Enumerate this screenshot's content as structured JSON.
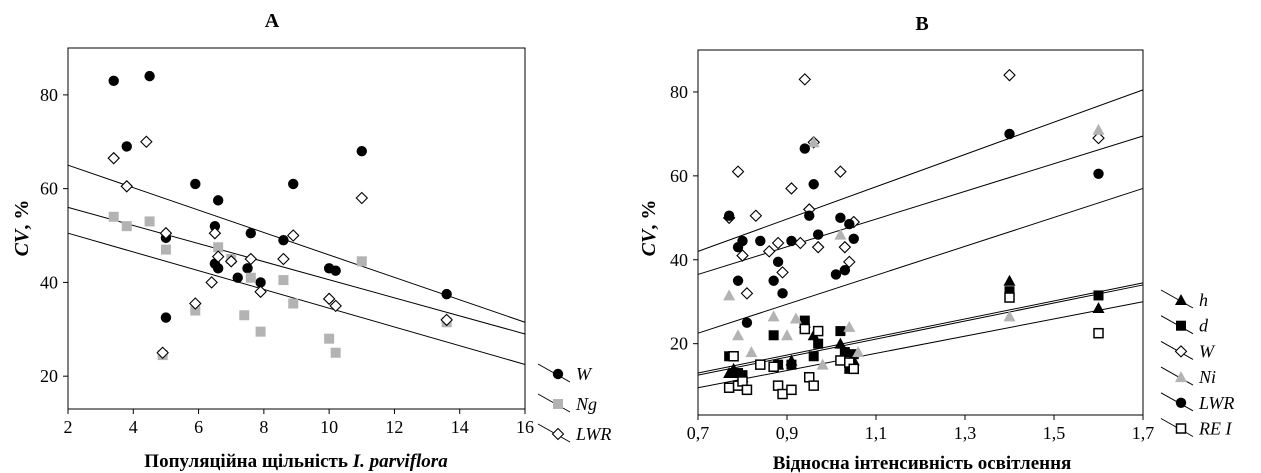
{
  "chart_data": [
    {
      "type": "scatter",
      "panel": "A",
      "title": "A",
      "xlabel": "Популяційна щільність I. parviflora",
      "xlabel_parts": [
        "Популяційна щільність ",
        "I. parviflora"
      ],
      "ylabel": "CV, %",
      "ylabel_parts": [
        "CV",
        ", %"
      ],
      "xlim": [
        2,
        16
      ],
      "ylim": [
        13,
        90
      ],
      "xticks": [
        2,
        4,
        6,
        8,
        10,
        12,
        14,
        16
      ],
      "yticks": [
        20,
        40,
        60,
        80
      ],
      "xtick_labels": [
        "2",
        "4",
        "6",
        "8",
        "10",
        "12",
        "14",
        "16"
      ],
      "ytick_labels": [
        "20",
        "40",
        "60",
        "80"
      ],
      "series": [
        {
          "name": "W",
          "marker": "circle-filled",
          "color": "#000000",
          "points": [
            [
              3.4,
              83
            ],
            [
              4.5,
              84
            ],
            [
              3.8,
              69
            ],
            [
              5.0,
              49.5
            ],
            [
              5.0,
              32.5
            ],
            [
              5.9,
              61
            ],
            [
              6.6,
              57.5
            ],
            [
              6.5,
              52
            ],
            [
              6.5,
              44
            ],
            [
              6.6,
              43
            ],
            [
              7.2,
              41
            ],
            [
              7.5,
              43
            ],
            [
              7.6,
              50.5
            ],
            [
              7.9,
              40
            ],
            [
              8.6,
              49
            ],
            [
              8.9,
              61
            ],
            [
              10.0,
              43
            ],
            [
              10.2,
              42.5
            ],
            [
              11.0,
              68
            ],
            [
              13.6,
              37.5
            ]
          ]
        },
        {
          "name": "Ng",
          "marker": "square-filled",
          "color": "#b3b3b3",
          "points": [
            [
              3.4,
              54
            ],
            [
              3.8,
              52
            ],
            [
              4.5,
              53
            ],
            [
              5.0,
              47
            ],
            [
              5.9,
              34
            ],
            [
              6.6,
              47.5
            ],
            [
              7.0,
              45
            ],
            [
              7.4,
              33
            ],
            [
              7.6,
              41
            ],
            [
              7.9,
              29.5
            ],
            [
              8.6,
              40.5
            ],
            [
              8.9,
              35.5
            ],
            [
              10.0,
              28
            ],
            [
              10.2,
              25
            ],
            [
              11.0,
              44.5
            ],
            [
              13.6,
              31.5
            ],
            [
              4.9,
              24.5
            ]
          ]
        },
        {
          "name": "LWR",
          "marker": "diamond-open",
          "color": "#000000",
          "points": [
            [
              3.4,
              66.5
            ],
            [
              3.8,
              60.5
            ],
            [
              4.4,
              70
            ],
            [
              5.0,
              50.5
            ],
            [
              4.9,
              25
            ],
            [
              5.9,
              35.5
            ],
            [
              6.5,
              50.5
            ],
            [
              6.4,
              40
            ],
            [
              6.6,
              45.5
            ],
            [
              7.0,
              44.5
            ],
            [
              7.6,
              45
            ],
            [
              7.9,
              38
            ],
            [
              8.6,
              45
            ],
            [
              8.9,
              50
            ],
            [
              10.0,
              36.5
            ],
            [
              10.2,
              35
            ],
            [
              11.0,
              58
            ],
            [
              13.6,
              32
            ]
          ]
        }
      ],
      "lines": [
        {
          "series": "W",
          "x": [
            2,
            16
          ],
          "y": [
            65,
            31.5
          ]
        },
        {
          "series": "Ng",
          "x": [
            2,
            16
          ],
          "y": [
            56,
            29
          ]
        },
        {
          "series": "LWR",
          "x": [
            2,
            16
          ],
          "y": [
            50.5,
            22.5
          ]
        }
      ],
      "legend": {
        "position": "right",
        "entries": [
          "W",
          "Ng",
          "LWR"
        ]
      }
    },
    {
      "type": "scatter",
      "panel": "B",
      "title": "B",
      "xlabel": "Відносна інтенсивність освітлення",
      "ylabel": "CV, %",
      "ylabel_parts": [
        "CV",
        ", %"
      ],
      "xlim": [
        0.7,
        1.7
      ],
      "ylim": [
        3,
        90
      ],
      "xticks": [
        0.7,
        0.9,
        1.1,
        1.3,
        1.5,
        1.7
      ],
      "yticks": [
        20,
        40,
        60,
        80
      ],
      "xtick_labels": [
        "0,7",
        "0,9",
        "1,1",
        "1,3",
        "1,5",
        "1,7"
      ],
      "ytick_labels": [
        "20",
        "40",
        "60",
        "80"
      ],
      "series": [
        {
          "name": "h",
          "marker": "triangle-filled",
          "color": "#000000",
          "points": [
            [
              0.77,
              13
            ],
            [
              0.78,
              14
            ],
            [
              0.8,
              12
            ],
            [
              0.88,
              15
            ],
            [
              0.91,
              16
            ],
            [
              0.94,
              25
            ],
            [
              0.96,
              22
            ],
            [
              1.02,
              20
            ],
            [
              1.03,
              18
            ],
            [
              1.05,
              16
            ],
            [
              1.4,
              35
            ],
            [
              1.6,
              28.5
            ]
          ]
        },
        {
          "name": "d",
          "marker": "square-filled",
          "color": "#000000",
          "points": [
            [
              0.77,
              17
            ],
            [
              0.79,
              13
            ],
            [
              0.8,
              12.5
            ],
            [
              0.87,
              22
            ],
            [
              0.88,
              15
            ],
            [
              0.91,
              15
            ],
            [
              0.94,
              25.5
            ],
            [
              0.96,
              17
            ],
            [
              0.97,
              20
            ],
            [
              1.02,
              23
            ],
            [
              1.03,
              18
            ],
            [
              1.04,
              14
            ],
            [
              1.05,
              17.5
            ],
            [
              1.4,
              32.5
            ],
            [
              1.6,
              31.5
            ]
          ]
        },
        {
          "name": "W",
          "marker": "diamond-open",
          "color": "#000000",
          "points": [
            [
              0.77,
              50
            ],
            [
              0.79,
              61
            ],
            [
              0.8,
              41
            ],
            [
              0.81,
              32
            ],
            [
              0.83,
              50.5
            ],
            [
              0.86,
              42
            ],
            [
              0.88,
              44
            ],
            [
              0.89,
              37
            ],
            [
              0.91,
              57
            ],
            [
              0.93,
              44
            ],
            [
              0.94,
              83
            ],
            [
              0.95,
              52
            ],
            [
              0.96,
              68
            ],
            [
              0.97,
              43
            ],
            [
              1.02,
              61
            ],
            [
              1.03,
              43
            ],
            [
              1.04,
              39.5
            ],
            [
              1.05,
              49
            ],
            [
              1.4,
              84
            ],
            [
              1.6,
              69
            ]
          ]
        },
        {
          "name": "Ni",
          "marker": "triangle-gray",
          "color": "#b3b3b3",
          "points": [
            [
              0.77,
              31.5
            ],
            [
              0.79,
              22
            ],
            [
              0.82,
              18
            ],
            [
              0.87,
              26.5
            ],
            [
              0.9,
              22
            ],
            [
              0.92,
              26
            ],
            [
              0.96,
              68
            ],
            [
              0.98,
              15
            ],
            [
              1.02,
              46
            ],
            [
              1.04,
              24
            ],
            [
              1.06,
              18
            ],
            [
              1.4,
              26.5
            ],
            [
              1.6,
              71
            ]
          ]
        },
        {
          "name": "LWR",
          "marker": "circle-filled",
          "color": "#000000",
          "points": [
            [
              0.77,
              50.5
            ],
            [
              0.79,
              43
            ],
            [
              0.8,
              44.5
            ],
            [
              0.79,
              35
            ],
            [
              0.81,
              25
            ],
            [
              0.84,
              44.5
            ],
            [
              0.87,
              35
            ],
            [
              0.88,
              39.5
            ],
            [
              0.89,
              32
            ],
            [
              0.91,
              44.5
            ],
            [
              0.94,
              66.5
            ],
            [
              0.95,
              50.5
            ],
            [
              0.96,
              58
            ],
            [
              0.97,
              46
            ],
            [
              1.01,
              36.5
            ],
            [
              1.02,
              50
            ],
            [
              1.03,
              37.5
            ],
            [
              1.04,
              48.5
            ],
            [
              1.05,
              45
            ],
            [
              1.4,
              70
            ],
            [
              1.6,
              60.5
            ]
          ]
        },
        {
          "name": "RE I",
          "marker": "square-open",
          "color": "#000000",
          "points": [
            [
              0.77,
              9.5
            ],
            [
              0.78,
              17
            ],
            [
              0.79,
              10
            ],
            [
              0.8,
              11
            ],
            [
              0.81,
              9
            ],
            [
              0.84,
              15
            ],
            [
              0.87,
              14.5
            ],
            [
              0.88,
              10
            ],
            [
              0.89,
              8
            ],
            [
              0.91,
              9
            ],
            [
              0.94,
              23.5
            ],
            [
              0.95,
              12
            ],
            [
              0.96,
              10
            ],
            [
              0.97,
              23
            ],
            [
              1.02,
              16
            ],
            [
              1.04,
              15.5
            ],
            [
              1.05,
              14
            ],
            [
              1.4,
              31
            ],
            [
              1.6,
              22.5
            ]
          ]
        }
      ],
      "lines": [
        {
          "x": [
            0.7,
            1.7
          ],
          "y": [
            42,
            80.5
          ]
        },
        {
          "x": [
            0.7,
            1.7
          ],
          "y": [
            36.5,
            69.5
          ]
        },
        {
          "x": [
            0.7,
            1.7
          ],
          "y": [
            22.5,
            57
          ]
        },
        {
          "x": [
            0.7,
            1.7
          ],
          "y": [
            13,
            34.5
          ]
        },
        {
          "x": [
            0.7,
            1.7
          ],
          "y": [
            12.5,
            34
          ]
        },
        {
          "x": [
            0.7,
            1.7
          ],
          "y": [
            9.5,
            30
          ]
        }
      ],
      "legend": {
        "position": "right",
        "entries": [
          "h",
          "d",
          "W",
          "Ni",
          "LWR",
          "RE I"
        ]
      }
    }
  ]
}
